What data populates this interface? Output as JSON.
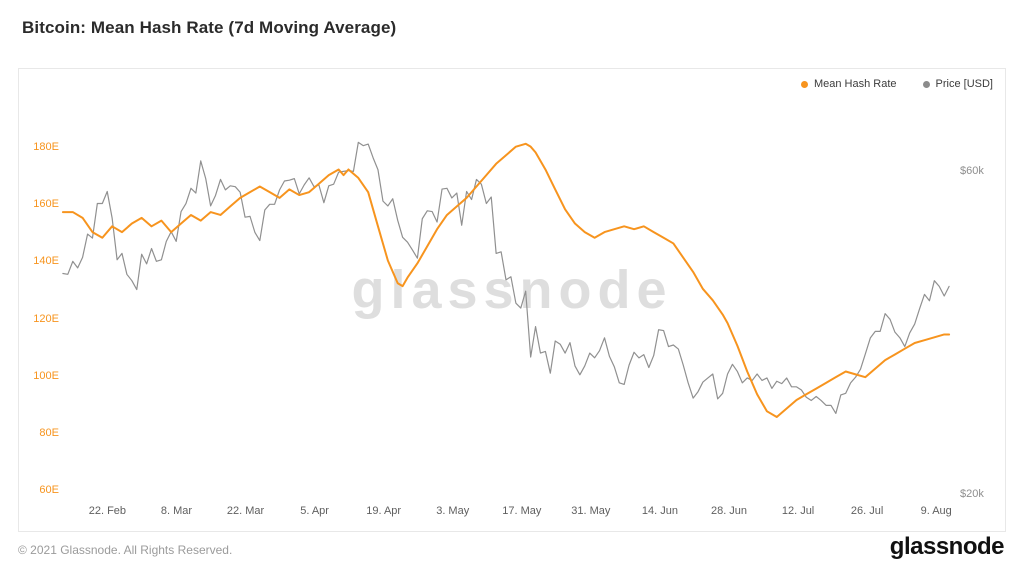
{
  "page": {
    "title": "Bitcoin: Mean Hash Rate (7d Moving Average)",
    "watermark": "glassnode",
    "footer_copyright": "© 2021 Glassnode. All Rights Reserved.",
    "brand_wordmark": "glassnode"
  },
  "legend": {
    "position": "top-right",
    "items": [
      {
        "label": "Mean Hash Rate",
        "color": "#f7941e"
      },
      {
        "label": "Price [USD]",
        "color": "#8c8c8c"
      }
    ]
  },
  "chart_data": {
    "type": "line",
    "title": "Bitcoin: Mean Hash Rate (7d Moving Average)",
    "grid": false,
    "legend_position": "top-right",
    "x_unit": "days from chart start (mid-Feb 2021 to mid-Aug 2021)",
    "x_domain_days": [
      0,
      180
    ],
    "x_tick_days": [
      9,
      23,
      37,
      51,
      65,
      79,
      93,
      107,
      121,
      135,
      149,
      163,
      177
    ],
    "x_tick_labels": [
      "22. Feb",
      "8. Mar",
      "22. Mar",
      "5. Apr",
      "19. Apr",
      "3. May",
      "17. May",
      "31. May",
      "14. Jun",
      "28. Jun",
      "12. Jul",
      "26. Jul",
      "9. Aug"
    ],
    "left_axis": {
      "title": "Mean Hash Rate",
      "unit": "EH/s",
      "min": 60,
      "max": 180,
      "ticks": [
        "180E",
        "160E",
        "140E",
        "120E",
        "100E",
        "80E",
        "60E"
      ],
      "tick_values": [
        180,
        160,
        140,
        120,
        100,
        80,
        60
      ],
      "color": "#f7941e"
    },
    "right_axis": {
      "title": "Price [USD]",
      "unit": "USD thousands",
      "ticks": [
        "$60k",
        "$20k"
      ],
      "tick_values": [
        60,
        20
      ],
      "color": "#8e8e8e"
    },
    "series": [
      {
        "name": "Mean Hash Rate",
        "axis": "left",
        "unit": "EH/s",
        "color": "#f7941e",
        "points": [
          [
            0,
            157
          ],
          [
            2,
            157
          ],
          [
            4,
            155
          ],
          [
            6,
            150
          ],
          [
            8,
            148
          ],
          [
            10,
            152
          ],
          [
            12,
            150
          ],
          [
            14,
            153
          ],
          [
            16,
            155
          ],
          [
            18,
            152
          ],
          [
            20,
            154
          ],
          [
            22,
            150
          ],
          [
            24,
            153
          ],
          [
            26,
            156
          ],
          [
            28,
            154
          ],
          [
            30,
            157
          ],
          [
            32,
            156
          ],
          [
            34,
            159
          ],
          [
            36,
            162
          ],
          [
            38,
            164
          ],
          [
            40,
            166
          ],
          [
            42,
            164
          ],
          [
            44,
            162
          ],
          [
            46,
            165
          ],
          [
            48,
            163
          ],
          [
            50,
            164
          ],
          [
            52,
            167
          ],
          [
            54,
            170
          ],
          [
            56,
            172
          ],
          [
            57,
            170
          ],
          [
            58,
            172
          ],
          [
            60,
            169
          ],
          [
            62,
            164
          ],
          [
            64,
            152
          ],
          [
            66,
            140
          ],
          [
            68,
            132
          ],
          [
            69,
            131
          ],
          [
            70,
            134
          ],
          [
            72,
            139
          ],
          [
            74,
            145
          ],
          [
            76,
            151
          ],
          [
            78,
            156
          ],
          [
            80,
            159
          ],
          [
            82,
            162
          ],
          [
            84,
            166
          ],
          [
            86,
            170
          ],
          [
            88,
            174
          ],
          [
            90,
            177
          ],
          [
            92,
            180
          ],
          [
            94,
            181
          ],
          [
            95,
            180
          ],
          [
            96,
            178
          ],
          [
            98,
            172
          ],
          [
            100,
            165
          ],
          [
            102,
            158
          ],
          [
            104,
            153
          ],
          [
            106,
            150
          ],
          [
            108,
            148
          ],
          [
            110,
            150
          ],
          [
            112,
            151
          ],
          [
            114,
            152
          ],
          [
            116,
            151
          ],
          [
            118,
            152
          ],
          [
            120,
            150
          ],
          [
            122,
            148
          ],
          [
            124,
            146
          ],
          [
            126,
            141
          ],
          [
            128,
            136
          ],
          [
            130,
            130
          ],
          [
            132,
            126
          ],
          [
            134,
            121
          ],
          [
            135,
            118
          ],
          [
            137,
            110
          ],
          [
            139,
            101
          ],
          [
            141,
            93
          ],
          [
            143,
            87
          ],
          [
            145,
            85
          ],
          [
            147,
            88
          ],
          [
            149,
            91
          ],
          [
            151,
            93
          ],
          [
            153,
            95
          ],
          [
            155,
            97
          ],
          [
            157,
            99
          ],
          [
            159,
            101
          ],
          [
            161,
            100
          ],
          [
            163,
            99
          ],
          [
            165,
            102
          ],
          [
            167,
            105
          ],
          [
            169,
            107
          ],
          [
            171,
            109
          ],
          [
            173,
            111
          ],
          [
            175,
            112
          ],
          [
            177,
            113
          ],
          [
            179,
            114
          ],
          [
            180,
            114
          ]
        ]
      },
      {
        "name": "Price [USD]",
        "axis": "right",
        "unit": "kUSD",
        "color": "#909090",
        "points": [
          [
            0,
            47.2
          ],
          [
            1,
            47.1
          ],
          [
            2,
            48.7
          ],
          [
            3,
            47.9
          ],
          [
            4,
            49.2
          ],
          [
            5,
            52.1
          ],
          [
            6,
            51.6
          ],
          [
            7,
            55.9
          ],
          [
            8,
            55.9
          ],
          [
            9,
            57.4
          ],
          [
            10,
            54.1
          ],
          [
            11,
            48.9
          ],
          [
            12,
            49.7
          ],
          [
            13,
            47.1
          ],
          [
            14,
            46.3
          ],
          [
            15,
            45.2
          ],
          [
            16,
            49.6
          ],
          [
            17,
            48.4
          ],
          [
            18,
            50.3
          ],
          [
            19,
            48.7
          ],
          [
            20,
            48.9
          ],
          [
            21,
            51.2
          ],
          [
            22,
            52.4
          ],
          [
            23,
            51.2
          ],
          [
            24,
            54.9
          ],
          [
            25,
            55.9
          ],
          [
            26,
            57.8
          ],
          [
            27,
            57.2
          ],
          [
            28,
            61.2
          ],
          [
            29,
            59.0
          ],
          [
            30,
            55.6
          ],
          [
            31,
            56.9
          ],
          [
            32,
            58.9
          ],
          [
            33,
            57.6
          ],
          [
            34,
            58.1
          ],
          [
            35,
            58.0
          ],
          [
            36,
            57.3
          ],
          [
            37,
            54.2
          ],
          [
            38,
            54.3
          ],
          [
            39,
            52.3
          ],
          [
            40,
            51.3
          ],
          [
            41,
            55.1
          ],
          [
            42,
            55.8
          ],
          [
            43,
            55.8
          ],
          [
            44,
            57.6
          ],
          [
            45,
            58.7
          ],
          [
            46,
            58.8
          ],
          [
            47,
            59.0
          ],
          [
            48,
            57.1
          ],
          [
            49,
            58.2
          ],
          [
            50,
            59.1
          ],
          [
            51,
            58.0
          ],
          [
            52,
            58.2
          ],
          [
            53,
            56.0
          ],
          [
            54,
            58.1
          ],
          [
            55,
            58.3
          ],
          [
            56,
            59.8
          ],
          [
            57,
            59.9
          ],
          [
            58,
            60.0
          ],
          [
            59,
            59.9
          ],
          [
            60,
            63.5
          ],
          [
            61,
            63.1
          ],
          [
            62,
            63.3
          ],
          [
            63,
            61.6
          ],
          [
            64,
            60.1
          ],
          [
            65,
            56.2
          ],
          [
            66,
            55.6
          ],
          [
            67,
            56.5
          ],
          [
            68,
            53.8
          ],
          [
            69,
            51.7
          ],
          [
            70,
            51.1
          ],
          [
            71,
            50.1
          ],
          [
            72,
            49.1
          ],
          [
            73,
            54.0
          ],
          [
            74,
            55.0
          ],
          [
            75,
            54.9
          ],
          [
            76,
            53.6
          ],
          [
            77,
            57.7
          ],
          [
            78,
            57.8
          ],
          [
            79,
            56.6
          ],
          [
            80,
            57.2
          ],
          [
            81,
            53.2
          ],
          [
            82,
            57.4
          ],
          [
            83,
            56.4
          ],
          [
            84,
            58.9
          ],
          [
            85,
            58.3
          ],
          [
            86,
            55.9
          ],
          [
            87,
            56.7
          ],
          [
            88,
            49.7
          ],
          [
            89,
            49.9
          ],
          [
            90,
            46.4
          ],
          [
            91,
            46.8
          ],
          [
            92,
            43.5
          ],
          [
            93,
            42.9
          ],
          [
            94,
            45.0
          ],
          [
            95,
            36.8
          ],
          [
            96,
            40.6
          ],
          [
            97,
            37.3
          ],
          [
            98,
            37.5
          ],
          [
            99,
            34.8
          ],
          [
            100,
            38.8
          ],
          [
            101,
            38.4
          ],
          [
            102,
            37.3
          ],
          [
            103,
            38.6
          ],
          [
            104,
            35.7
          ],
          [
            105,
            34.6
          ],
          [
            106,
            35.7
          ],
          [
            107,
            37.3
          ],
          [
            108,
            36.7
          ],
          [
            109,
            37.6
          ],
          [
            110,
            39.2
          ],
          [
            111,
            36.9
          ],
          [
            112,
            35.6
          ],
          [
            113,
            33.6
          ],
          [
            114,
            33.4
          ],
          [
            115,
            35.8
          ],
          [
            116,
            37.4
          ],
          [
            117,
            36.7
          ],
          [
            118,
            37.1
          ],
          [
            119,
            35.5
          ],
          [
            120,
            37.0
          ],
          [
            121,
            40.2
          ],
          [
            122,
            40.1
          ],
          [
            123,
            38.1
          ],
          [
            124,
            38.3
          ],
          [
            125,
            37.8
          ],
          [
            126,
            35.8
          ],
          [
            127,
            33.6
          ],
          [
            128,
            31.7
          ],
          [
            129,
            32.5
          ],
          [
            130,
            33.7
          ],
          [
            131,
            34.2
          ],
          [
            132,
            34.7
          ],
          [
            133,
            31.6
          ],
          [
            134,
            32.3
          ],
          [
            135,
            34.7
          ],
          [
            136,
            35.9
          ],
          [
            137,
            35.0
          ],
          [
            138,
            33.6
          ],
          [
            139,
            34.2
          ],
          [
            140,
            33.9
          ],
          [
            141,
            34.7
          ],
          [
            142,
            33.9
          ],
          [
            143,
            34.2
          ],
          [
            144,
            32.9
          ],
          [
            145,
            33.8
          ],
          [
            146,
            33.5
          ],
          [
            147,
            34.2
          ],
          [
            148,
            33.1
          ],
          [
            149,
            33.1
          ],
          [
            150,
            32.7
          ],
          [
            151,
            31.8
          ],
          [
            152,
            31.4
          ],
          [
            153,
            31.9
          ],
          [
            154,
            31.4
          ],
          [
            155,
            30.8
          ],
          [
            156,
            30.8
          ],
          [
            157,
            29.8
          ],
          [
            158,
            32.1
          ],
          [
            159,
            32.3
          ],
          [
            160,
            33.6
          ],
          [
            161,
            34.3
          ],
          [
            162,
            35.3
          ],
          [
            163,
            37.2
          ],
          [
            164,
            39.2
          ],
          [
            165,
            40.0
          ],
          [
            166,
            40.0
          ],
          [
            167,
            42.2
          ],
          [
            168,
            41.5
          ],
          [
            169,
            39.9
          ],
          [
            170,
            39.2
          ],
          [
            171,
            38.1
          ],
          [
            172,
            39.8
          ],
          [
            173,
            40.9
          ],
          [
            174,
            42.8
          ],
          [
            175,
            44.6
          ],
          [
            176,
            43.8
          ],
          [
            177,
            46.3
          ],
          [
            178,
            45.6
          ],
          [
            179,
            44.4
          ],
          [
            180,
            45.6
          ]
        ]
      }
    ]
  }
}
